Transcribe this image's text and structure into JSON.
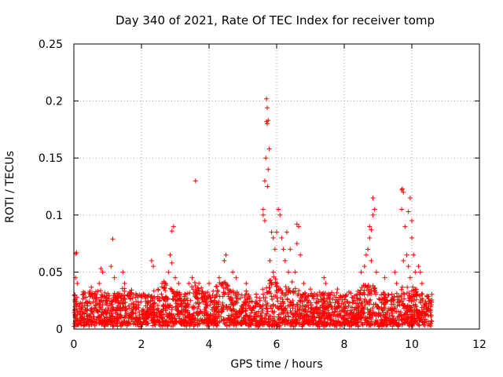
{
  "chart_data": {
    "type": "scatter",
    "title": "Day 340 of 2021, Rate Of TEC Index for receiver tomp",
    "xlabel": "GPS time / hours",
    "ylabel": "ROTI / TECUs",
    "xlim": [
      0,
      12
    ],
    "ylim": [
      0,
      0.25
    ],
    "x_ticks": [
      "0",
      "2",
      "4",
      "6",
      "8",
      "10",
      "12"
    ],
    "y_ticks": [
      "0",
      "0.05",
      "0.1",
      "0.15",
      "0.2",
      "0.25"
    ],
    "grid": true,
    "marker": "+",
    "color": "#ff0000",
    "series": [
      {
        "name": "ROTI",
        "points": [
          [
            0.05,
            0.066
          ],
          [
            0.08,
            0.067
          ],
          [
            0.05,
            0.045
          ],
          [
            0.1,
            0.04
          ],
          [
            0.02,
            0.03
          ],
          [
            0.8,
            0.053
          ],
          [
            0.85,
            0.05
          ],
          [
            0.75,
            0.04
          ],
          [
            1.15,
            0.079
          ],
          [
            1.1,
            0.055
          ],
          [
            1.2,
            0.045
          ],
          [
            1.45,
            0.05
          ],
          [
            1.5,
            0.04
          ],
          [
            2.3,
            0.06
          ],
          [
            2.35,
            0.055
          ],
          [
            2.85,
            0.065
          ],
          [
            2.9,
            0.058
          ],
          [
            2.95,
            0.09
          ],
          [
            2.9,
            0.086
          ],
          [
            2.8,
            0.05
          ],
          [
            3.0,
            0.045
          ],
          [
            3.1,
            0.04
          ],
          [
            3.6,
            0.13
          ],
          [
            3.4,
            0.04
          ],
          [
            3.5,
            0.045
          ],
          [
            3.7,
            0.04
          ],
          [
            4.0,
            0.04
          ],
          [
            4.5,
            0.065
          ],
          [
            4.45,
            0.06
          ],
          [
            4.3,
            0.045
          ],
          [
            4.7,
            0.05
          ],
          [
            4.8,
            0.045
          ],
          [
            5.1,
            0.04
          ],
          [
            5.6,
            0.105
          ],
          [
            5.65,
            0.13
          ],
          [
            5.68,
            0.15
          ],
          [
            5.72,
            0.18
          ],
          [
            5.7,
            0.182
          ],
          [
            5.75,
            0.183
          ],
          [
            5.72,
            0.194
          ],
          [
            5.7,
            0.202
          ],
          [
            5.78,
            0.158
          ],
          [
            5.75,
            0.14
          ],
          [
            5.73,
            0.125
          ],
          [
            5.6,
            0.1
          ],
          [
            5.65,
            0.095
          ],
          [
            5.85,
            0.085
          ],
          [
            5.9,
            0.08
          ],
          [
            5.95,
            0.07
          ],
          [
            5.8,
            0.06
          ],
          [
            5.9,
            0.05
          ],
          [
            6.05,
            0.105
          ],
          [
            6.1,
            0.1
          ],
          [
            6.0,
            0.085
          ],
          [
            6.15,
            0.08
          ],
          [
            6.2,
            0.07
          ],
          [
            6.3,
            0.085
          ],
          [
            6.25,
            0.06
          ],
          [
            6.4,
            0.07
          ],
          [
            6.35,
            0.05
          ],
          [
            6.6,
            0.092
          ],
          [
            6.65,
            0.09
          ],
          [
            6.6,
            0.075
          ],
          [
            6.7,
            0.065
          ],
          [
            6.55,
            0.05
          ],
          [
            6.8,
            0.04
          ],
          [
            7.0,
            0.035
          ],
          [
            7.4,
            0.045
          ],
          [
            7.45,
            0.04
          ],
          [
            7.8,
            0.035
          ],
          [
            8.5,
            0.05
          ],
          [
            8.6,
            0.055
          ],
          [
            8.7,
            0.07
          ],
          [
            8.75,
            0.09
          ],
          [
            8.8,
            0.087
          ],
          [
            8.85,
            0.115
          ],
          [
            8.9,
            0.105
          ],
          [
            8.85,
            0.1
          ],
          [
            8.75,
            0.08
          ],
          [
            8.65,
            0.065
          ],
          [
            8.8,
            0.06
          ],
          [
            8.95,
            0.05
          ],
          [
            9.2,
            0.045
          ],
          [
            9.5,
            0.05
          ],
          [
            9.55,
            0.04
          ],
          [
            9.7,
            0.122
          ],
          [
            9.72,
            0.123
          ],
          [
            9.75,
            0.12
          ],
          [
            9.7,
            0.105
          ],
          [
            9.8,
            0.09
          ],
          [
            9.95,
            0.115
          ],
          [
            9.9,
            0.103
          ],
          [
            10.0,
            0.095
          ],
          [
            9.85,
            0.065
          ],
          [
            9.75,
            0.06
          ],
          [
            9.9,
            0.055
          ],
          [
            10.0,
            0.08
          ],
          [
            10.05,
            0.065
          ],
          [
            9.95,
            0.045
          ],
          [
            10.1,
            0.05
          ],
          [
            10.2,
            0.055
          ],
          [
            10.25,
            0.05
          ],
          [
            10.3,
            0.04
          ],
          [
            10.5,
            0.02
          ],
          [
            10.55,
            0.015
          ]
        ],
        "dense_band": {
          "x_range": [
            0,
            10.6
          ],
          "y_range": [
            0.002,
            0.03
          ],
          "hot_spots": [
            {
              "x": 0.6,
              "y_max": 0.036
            },
            {
              "x": 1.5,
              "y_max": 0.034
            },
            {
              "x": 2.7,
              "y_max": 0.04
            },
            {
              "x": 3.6,
              "y_max": 0.042
            },
            {
              "x": 4.4,
              "y_max": 0.045
            },
            {
              "x": 5.9,
              "y_max": 0.045
            },
            {
              "x": 6.4,
              "y_max": 0.04
            },
            {
              "x": 8.7,
              "y_max": 0.04
            },
            {
              "x": 9.9,
              "y_max": 0.04
            }
          ]
        }
      }
    ]
  }
}
